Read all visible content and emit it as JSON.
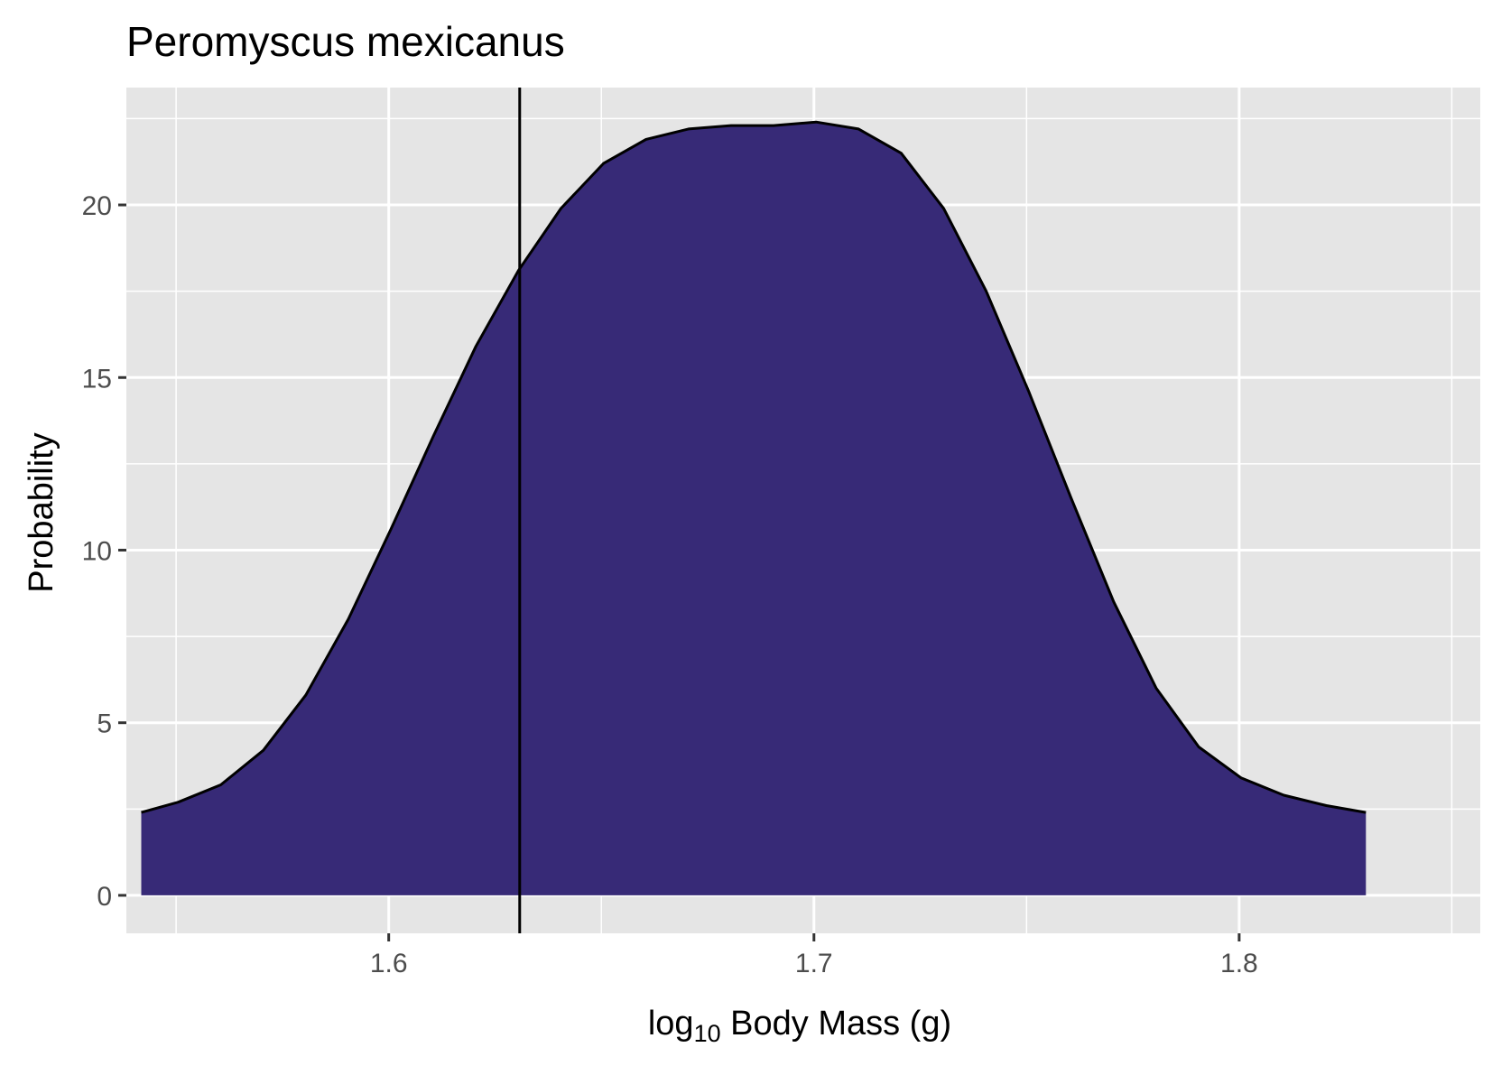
{
  "chart_data": {
    "type": "area",
    "title": "Peromyscus mexicanus",
    "xlabel": {
      "prefix": "log",
      "subscript": "10",
      "suffix": " Body Mass (g)"
    },
    "ylabel": "Probability",
    "xlim": [
      1.5383,
      1.8567
    ],
    "ylim": [
      -1.1,
      23.4
    ],
    "x_ticks": [
      {
        "value": 1.6,
        "label": "1.6"
      },
      {
        "value": 1.7,
        "label": "1.7"
      },
      {
        "value": 1.8,
        "label": "1.8"
      }
    ],
    "x_minor_ticks": [
      1.55,
      1.65,
      1.75,
      1.85
    ],
    "y_ticks": [
      {
        "value": 0,
        "label": "0"
      },
      {
        "value": 5,
        "label": "5"
      },
      {
        "value": 10,
        "label": "10"
      },
      {
        "value": 15,
        "label": "15"
      },
      {
        "value": 20,
        "label": "20"
      }
    ],
    "y_minor_ticks": [
      2.5,
      7.5,
      12.5,
      17.5,
      22.5
    ],
    "grid": true,
    "panel_background": "#e5e5e5",
    "grid_color": "#ffffff",
    "series": [
      {
        "fill": "#372a77",
        "stroke": "#000000",
        "x": [
          1.5418,
          1.5505,
          1.5605,
          1.5705,
          1.5805,
          1.5905,
          1.6005,
          1.6105,
          1.6205,
          1.6305,
          1.6405,
          1.6505,
          1.6605,
          1.6705,
          1.6805,
          1.6905,
          1.7005,
          1.7105,
          1.7205,
          1.7305,
          1.7405,
          1.7505,
          1.7605,
          1.7705,
          1.7805,
          1.7905,
          1.8005,
          1.8105,
          1.8205,
          1.8298
        ],
        "y": [
          2.4,
          2.7,
          3.2,
          4.2,
          5.8,
          8.0,
          10.6,
          13.3,
          15.9,
          18.1,
          19.9,
          21.2,
          21.9,
          22.2,
          22.3,
          22.3,
          22.4,
          22.2,
          21.5,
          19.9,
          17.5,
          14.6,
          11.5,
          8.5,
          6.0,
          4.3,
          3.4,
          2.9,
          2.6,
          2.4
        ]
      }
    ],
    "vline": {
      "x": 1.6308,
      "color": "#000000"
    }
  }
}
